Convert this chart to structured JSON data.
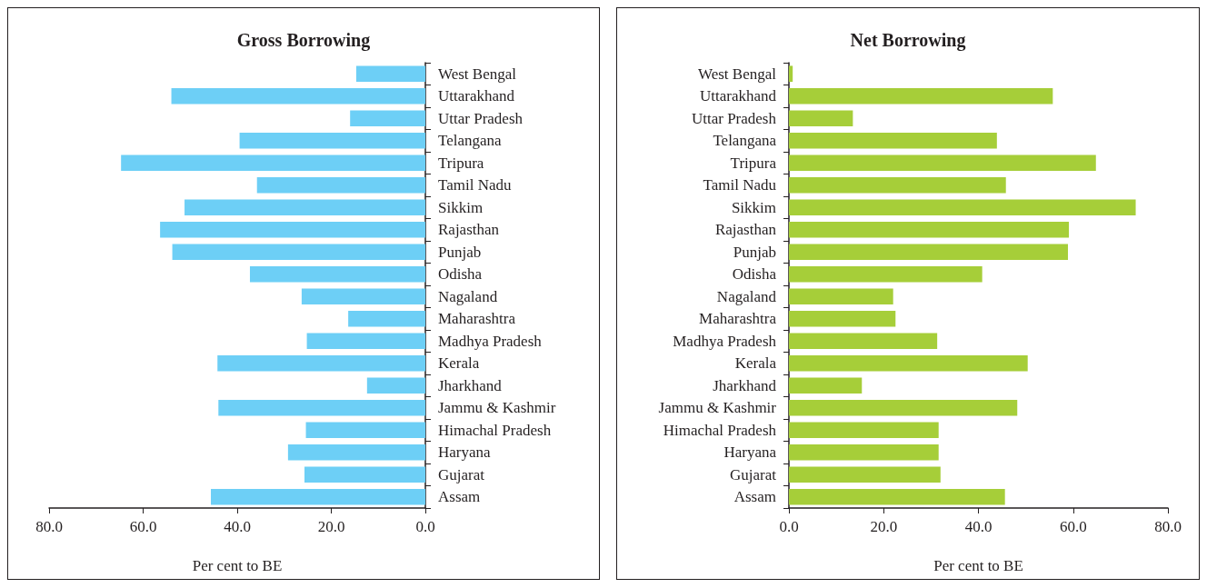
{
  "chart_data": [
    {
      "type": "bar",
      "orientation": "horizontal",
      "title": "Gross Borrowing",
      "xlabel": "Per cent to BE",
      "categories": [
        "West Bengal",
        "Uttarakhand",
        "Uttar Pradesh",
        "Telangana",
        "Tripura",
        "Tamil Nadu",
        "Sikkim",
        "Rajasthan",
        "Punjab",
        "Odisha",
        "Nagaland",
        "Maharashtra",
        "Madhya Pradesh",
        "Kerala",
        "Jharkhand",
        "Jammu & Kashmir",
        "Himachal Pradesh",
        "Haryana",
        "Gujarat",
        "Assam"
      ],
      "values": [
        14.7,
        54.0,
        16.0,
        39.5,
        64.7,
        35.8,
        51.2,
        56.4,
        53.8,
        37.3,
        26.3,
        16.4,
        25.2,
        44.2,
        12.4,
        44.0,
        25.4,
        29.2,
        25.7,
        45.6
      ],
      "color": "#6dcff6",
      "xlim": [
        80,
        0
      ],
      "xticks": [
        {
          "value": 80,
          "label": "80.0"
        },
        {
          "value": 60,
          "label": "60.0"
        },
        {
          "value": 40,
          "label": "40.0"
        },
        {
          "value": 20,
          "label": "20.0"
        },
        {
          "value": 0,
          "label": "0.0"
        }
      ],
      "grid": false
    },
    {
      "type": "bar",
      "orientation": "horizontal",
      "title": "Net Borrowing",
      "xlabel": "Per cent to BE",
      "categories": [
        "West Bengal",
        "Uttarakhand",
        "Uttar Pradesh",
        "Telangana",
        "Tripura",
        "Tamil Nadu",
        "Sikkim",
        "Rajasthan",
        "Punjab",
        "Odisha",
        "Nagaland",
        "Maharashtra",
        "Madhya Pradesh",
        "Kerala",
        "Jharkhand",
        "Jammu & Kashmir",
        "Himachal Pradesh",
        "Haryana",
        "Gujarat",
        "Assam"
      ],
      "values": [
        0.8,
        55.7,
        13.5,
        43.9,
        64.8,
        45.8,
        73.2,
        59.1,
        58.9,
        40.8,
        22.0,
        22.5,
        31.3,
        50.4,
        15.4,
        48.2,
        31.6,
        31.6,
        32.0,
        45.6
      ],
      "color": "#a6ce39",
      "xlim": [
        0,
        80
      ],
      "xticks": [
        {
          "value": 0,
          "label": "0.0"
        },
        {
          "value": 20,
          "label": "20.0"
        },
        {
          "value": 40,
          "label": "40.0"
        },
        {
          "value": 60,
          "label": "60.0"
        },
        {
          "value": 80,
          "label": "80.0"
        }
      ],
      "grid": false
    }
  ]
}
